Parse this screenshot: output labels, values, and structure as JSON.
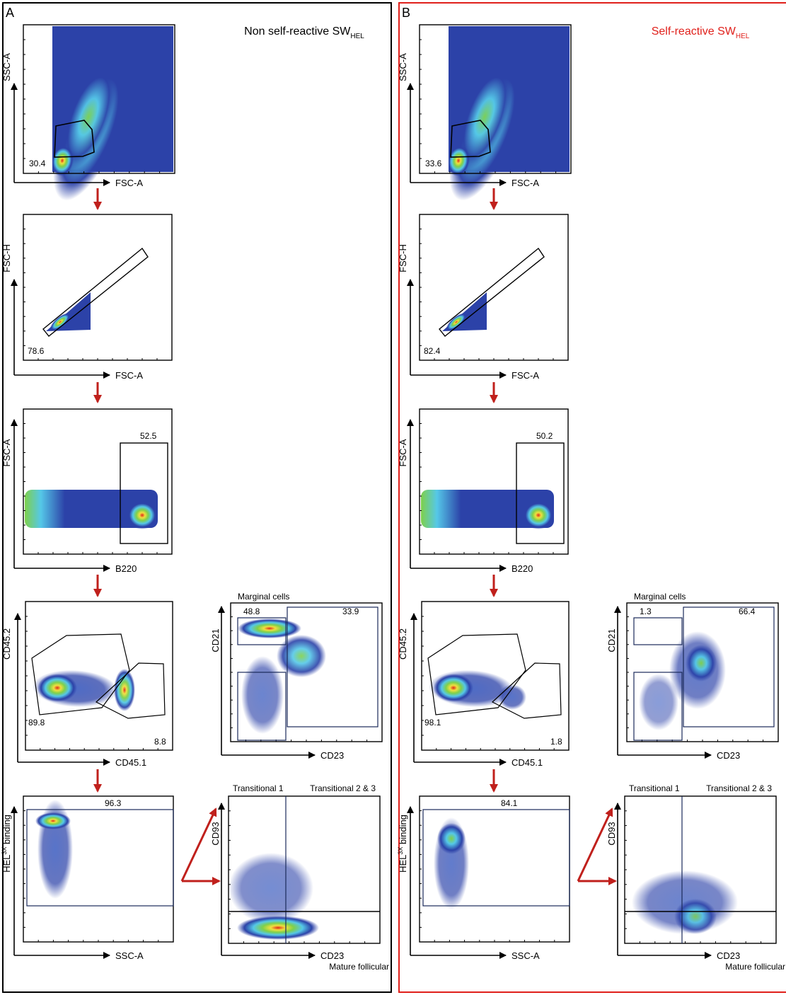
{
  "colors": {
    "panel_a_border": "#000000",
    "panel_b_border": "#e0201b",
    "arrow": "#c0201c",
    "density_low": "#2c42a8",
    "density_mid": "#55c8e8",
    "density_midhigh": "#7fd04a",
    "density_high": "#f0e040",
    "density_peak": "#e02818"
  },
  "panels": [
    {
      "letter": "A",
      "title_main": "Non self-reactive SW",
      "title_sub": "HEL",
      "plots": {
        "p1": {
          "x_axis": "FSC-A",
          "y_axis": "SSC-A",
          "gate_value": "30.4"
        },
        "p2": {
          "x_axis": "FSC-A",
          "y_axis": "FSC-H",
          "gate_value": "78.6"
        },
        "p3": {
          "x_axis": "B220",
          "y_axis": "FSC-A",
          "gate_value": "52.5"
        },
        "p4": {
          "x_axis": "CD45.1",
          "y_axis": "CD45.2",
          "gate_value_left": "89.8",
          "gate_value_right": "8.8"
        },
        "p5": {
          "x_axis": "SSC-A",
          "y_axis_main": "HEL",
          "y_axis_sup": "3X",
          "y_axis_rest": " binding",
          "gate_value": "96.3"
        },
        "p6": {
          "x_axis": "CD23",
          "y_axis": "CD21",
          "plot_title": "Marginal cells",
          "gate_value_left": "48.8",
          "gate_value_right": "33.9"
        },
        "p7": {
          "x_axis": "CD23",
          "y_axis": "CD93",
          "label_t1": "Transitional 1",
          "label_t23": "Transitional 2 & 3",
          "label_mature": "Mature follicular"
        }
      }
    },
    {
      "letter": "B",
      "title_main": "Self-reactive SW",
      "title_sub": "HEL",
      "plots": {
        "p1": {
          "x_axis": "FSC-A",
          "y_axis": "SSC-A",
          "gate_value": "33.6"
        },
        "p2": {
          "x_axis": "FSC-A",
          "y_axis": "FSC-H",
          "gate_value": "82.4"
        },
        "p3": {
          "x_axis": "B220",
          "y_axis": "FSC-A",
          "gate_value": "50.2"
        },
        "p4": {
          "x_axis": "CD45.1",
          "y_axis": "CD45.2",
          "gate_value_left": "98.1",
          "gate_value_right": "1.8"
        },
        "p5": {
          "x_axis": "SSC-A",
          "y_axis_main": "HEL",
          "y_axis_sup": "3X",
          "y_axis_rest": " binding",
          "gate_value": "84.1"
        },
        "p6": {
          "x_axis": "CD23",
          "y_axis": "CD21",
          "plot_title": "Marginal cells",
          "gate_value_left": "1.3",
          "gate_value_right": "66.4"
        },
        "p7": {
          "x_axis": "CD23",
          "y_axis": "CD93",
          "label_t1": "Transitional 1",
          "label_t23": "Transitional 2 & 3",
          "label_mature": "Mature follicular"
        }
      }
    }
  ]
}
